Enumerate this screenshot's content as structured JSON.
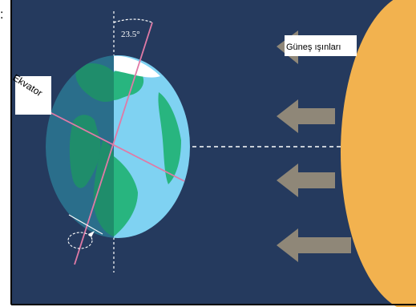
{
  "leading_char": ":",
  "tilt_angle_label": "23.5°",
  "equator_label": "Ekvator",
  "sun_rays_label": "Güneş ışınları",
  "colors": {
    "background": "#253a5e",
    "sun": "#f2b24f",
    "arrow": "#8f8778",
    "ocean_dark": "#2a6e8b",
    "ocean_light": "#7fd2f2",
    "land_dark": "#1f8d6b",
    "land_light": "#28b57f",
    "axis": "#e07aa6"
  }
}
